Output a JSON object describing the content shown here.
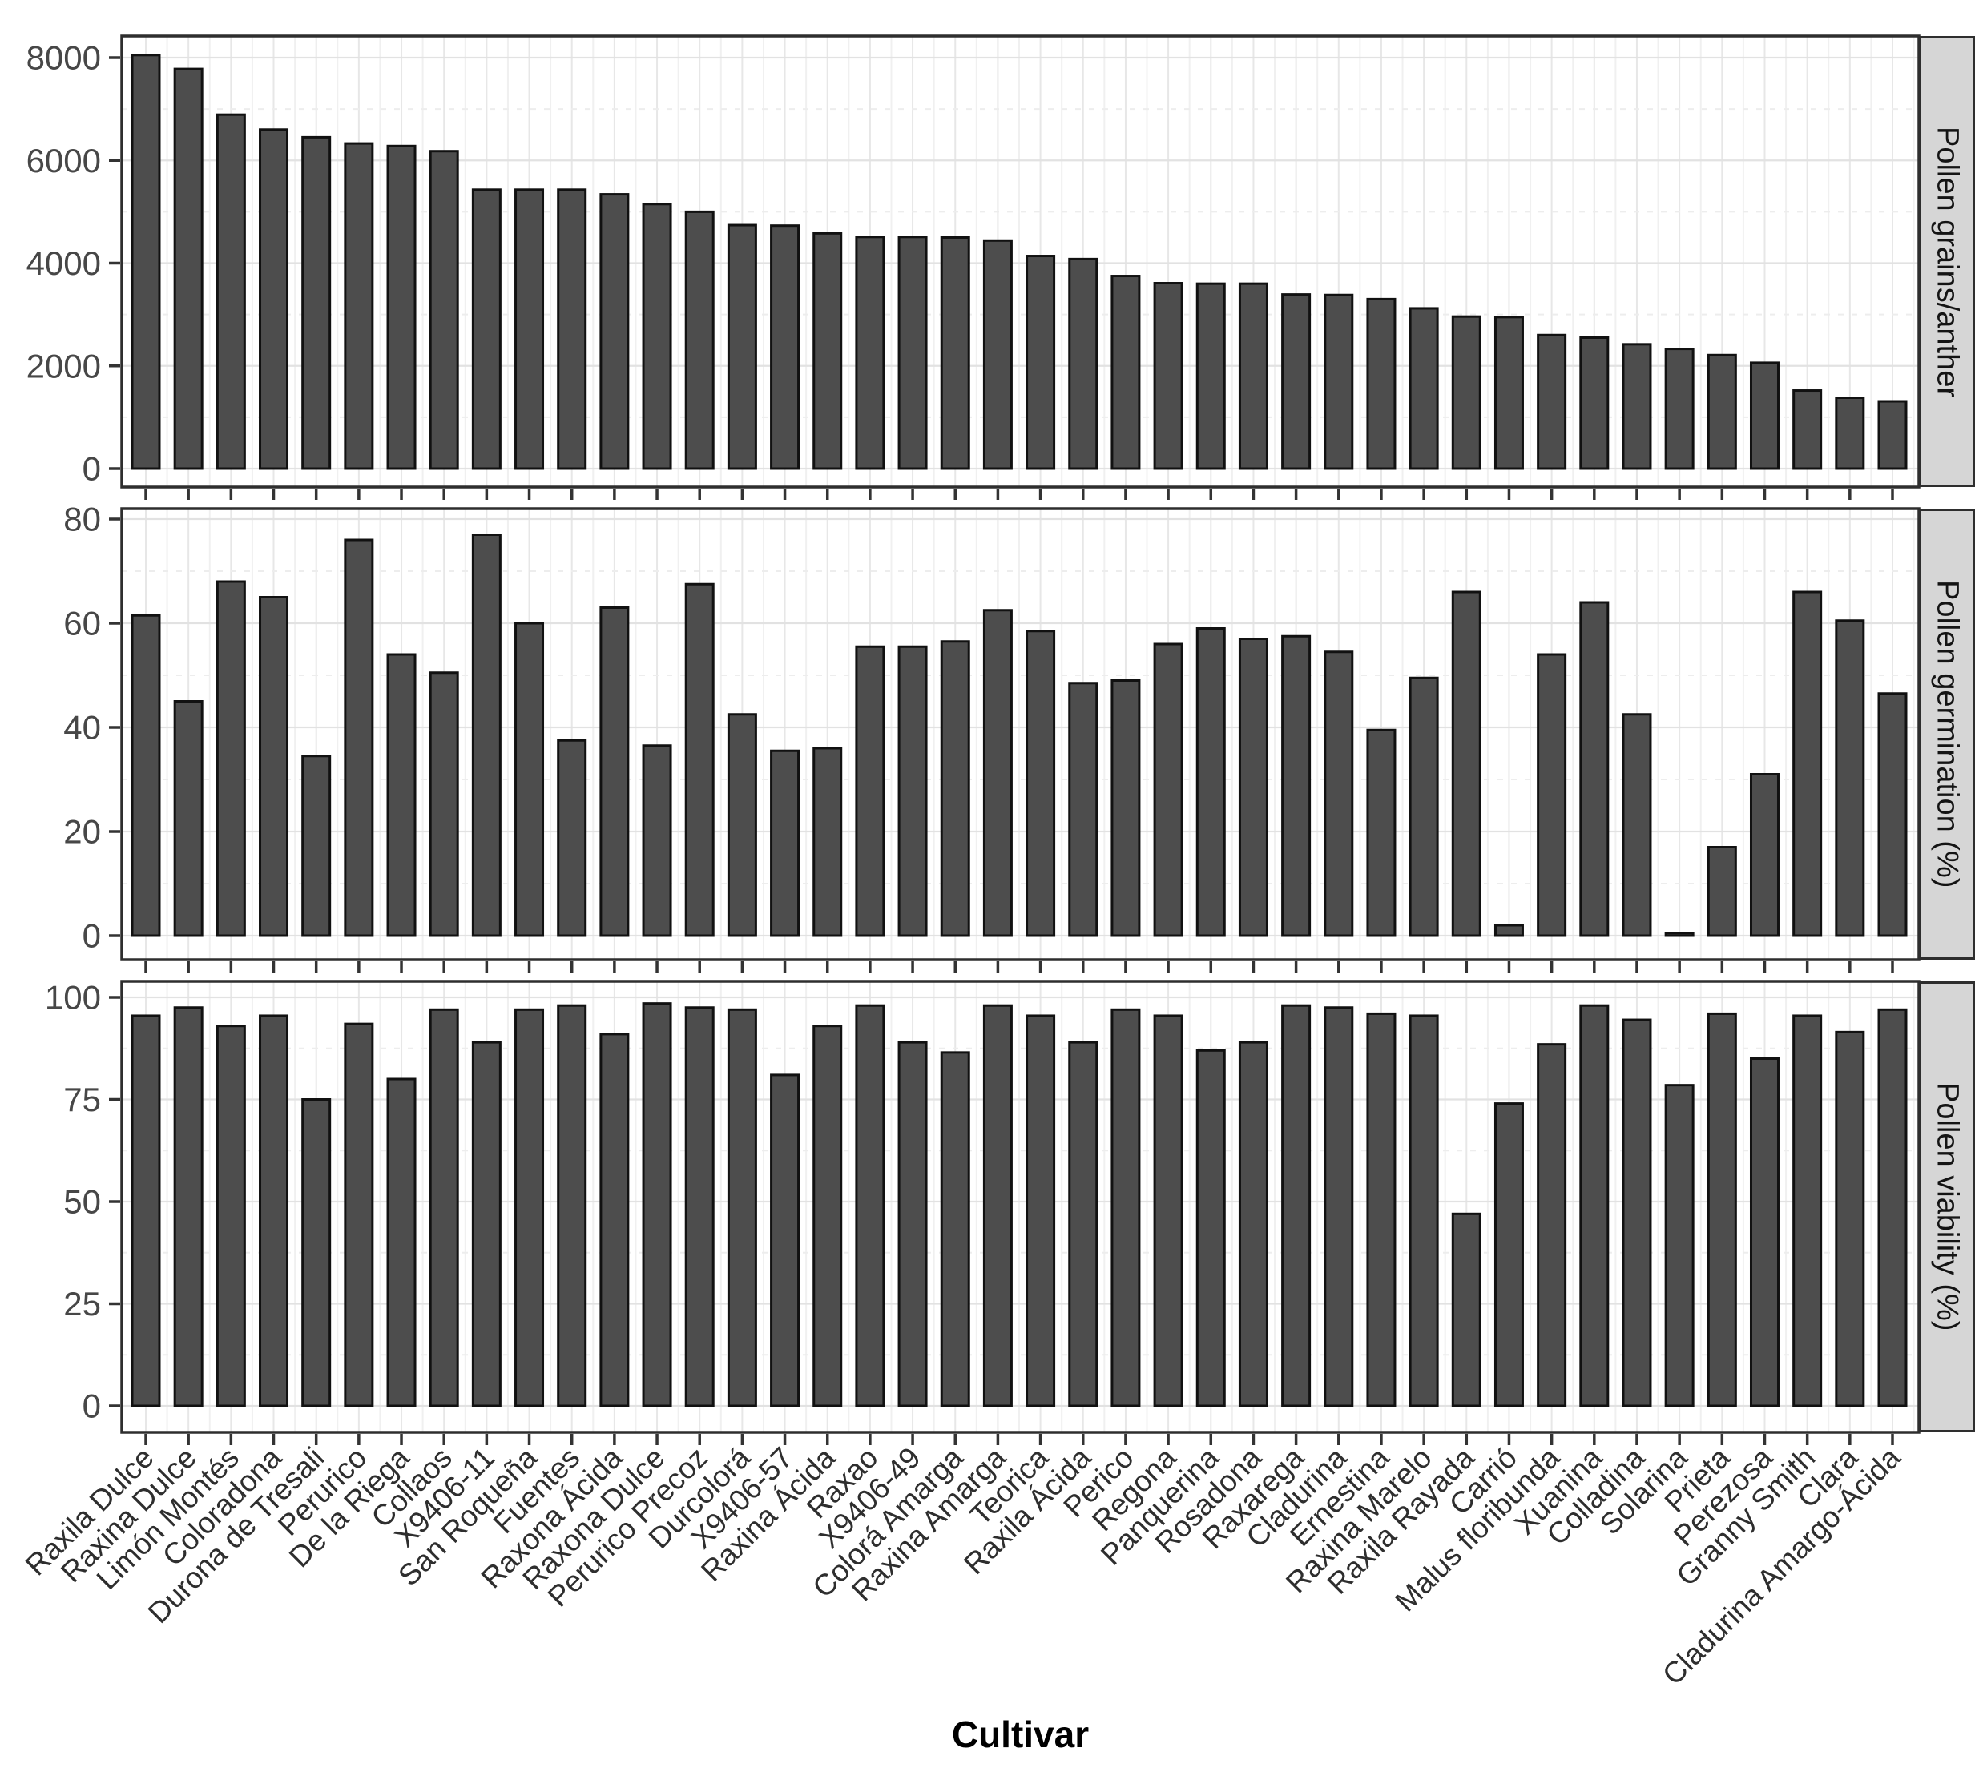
{
  "figure": {
    "x_axis_title": "Cultivar",
    "background": "#ffffff",
    "bar_fill": "#4d4d4d",
    "bar_stroke": "#111111",
    "panel_border": "#2e2e2e",
    "grid_major": "#e2e2e2",
    "grid_minor": "#ededed",
    "strip_bg": "#d6d6d6",
    "tick_color": "#333333",
    "tick_label_color": "#474747"
  },
  "chart_data": [
    {
      "type": "bar",
      "title": "Pollen grains/anther",
      "ylabel": "Pollen grains/anther",
      "xlabel": "",
      "legend": "none",
      "grid": true,
      "ylim": [
        0,
        8400
      ],
      "yticks": [
        0,
        2000,
        4000,
        6000,
        8000
      ],
      "yminor": [
        1000,
        3000,
        5000,
        7000
      ],
      "categories": [
        "Raxila Dulce",
        "Raxina Dulce",
        "Limón Montés",
        "Coloradona",
        "Durona de Tresali",
        "Perurico",
        "De la Riega",
        "Collaos",
        "X9406-11",
        "San Roqueña",
        "Fuentes",
        "Raxona Ácida",
        "Raxona Dulce",
        "Perurico Precoz",
        "Durcolorá",
        "X9406-57",
        "Raxina Ácida",
        "Raxao",
        "X9406-49",
        "Colorá Amarga",
        "Raxina Amarga",
        "Teorica",
        "Raxila Ácida",
        "Perico",
        "Regona",
        "Panquerina",
        "Rosadona",
        "Raxarega",
        "Cladurina",
        "Ernestina",
        "Raxina Marelo",
        "Raxila Rayada",
        "Carrió",
        "Malus floribunda",
        "Xuanina",
        "Colladina",
        "Solarina",
        "Prieta",
        "Perezosa",
        "Granny Smith",
        "Clara",
        "Cladurina Amargo-Ácida"
      ],
      "values": [
        8050,
        7780,
        6890,
        6600,
        6450,
        6330,
        6280,
        6180,
        5430,
        5430,
        5430,
        5340,
        5150,
        5000,
        4740,
        4730,
        4580,
        4510,
        4510,
        4500,
        4440,
        4140,
        4080,
        3750,
        3610,
        3600,
        3600,
        3390,
        3380,
        3300,
        3120,
        2960,
        2950,
        2600,
        2550,
        2420,
        2330,
        2210,
        2060,
        1520,
        1380,
        1310
      ]
    },
    {
      "type": "bar",
      "title": "Pollen germination (%)",
      "ylabel": "Pollen germination (%)",
      "xlabel": "",
      "legend": "none",
      "grid": true,
      "ylim": [
        0,
        82
      ],
      "yticks": [
        0,
        20,
        40,
        60,
        80
      ],
      "yminor": [
        10,
        30,
        50,
        70
      ],
      "categories": [
        "Raxila Dulce",
        "Raxina Dulce",
        "Limón Montés",
        "Coloradona",
        "Durona de Tresali",
        "Perurico",
        "De la Riega",
        "Collaos",
        "X9406-11",
        "San Roqueña",
        "Fuentes",
        "Raxona Ácida",
        "Raxona Dulce",
        "Perurico Precoz",
        "Durcolorá",
        "X9406-57",
        "Raxina Ácida",
        "Raxao",
        "X9406-49",
        "Colorá Amarga",
        "Raxina Amarga",
        "Teorica",
        "Raxila Ácida",
        "Perico",
        "Regona",
        "Panquerina",
        "Rosadona",
        "Raxarega",
        "Cladurina",
        "Ernestina",
        "Raxina Marelo",
        "Raxila Rayada",
        "Carrió",
        "Malus floribunda",
        "Xuanina",
        "Colladina",
        "Solarina",
        "Prieta",
        "Perezosa",
        "Granny Smith",
        "Clara",
        "Cladurina Amargo-Ácida"
      ],
      "values": [
        61.5,
        45,
        68,
        65,
        34.5,
        76,
        54,
        50.5,
        77,
        60,
        37.5,
        63,
        36.5,
        67.5,
        42.5,
        35.5,
        36,
        55.5,
        55.5,
        56.5,
        62.5,
        58.5,
        48.5,
        49,
        56,
        59,
        57,
        57.5,
        54.5,
        39.5,
        49.5,
        66,
        2,
        54,
        64,
        42.5,
        0.5,
        17,
        31,
        66,
        60.5,
        46.5
      ]
    },
    {
      "type": "bar",
      "title": "Pollen viability (%)",
      "ylabel": "Pollen viability (%)",
      "xlabel": "Cultivar",
      "legend": "none",
      "grid": true,
      "ylim": [
        0,
        104
      ],
      "yticks": [
        0,
        25,
        50,
        75,
        100
      ],
      "yminor": [
        12.5,
        37.5,
        62.5,
        87.5
      ],
      "categories": [
        "Raxila Dulce",
        "Raxina Dulce",
        "Limón Montés",
        "Coloradona",
        "Durona de Tresali",
        "Perurico",
        "De la Riega",
        "Collaos",
        "X9406-11",
        "San Roqueña",
        "Fuentes",
        "Raxona Ácida",
        "Raxona Dulce",
        "Perurico Precoz",
        "Durcolorá",
        "X9406-57",
        "Raxina Ácida",
        "Raxao",
        "X9406-49",
        "Colorá Amarga",
        "Raxina Amarga",
        "Teorica",
        "Raxila Ácida",
        "Perico",
        "Regona",
        "Panquerina",
        "Rosadona",
        "Raxarega",
        "Cladurina",
        "Ernestina",
        "Raxina Marelo",
        "Raxila Rayada",
        "Carrió",
        "Malus floribunda",
        "Xuanina",
        "Colladina",
        "Solarina",
        "Prieta",
        "Perezosa",
        "Granny Smith",
        "Clara",
        "Cladurina Amargo-Ácida"
      ],
      "values": [
        95.5,
        97.5,
        93,
        95.5,
        75,
        93.5,
        80,
        97,
        89,
        97,
        98,
        91,
        98.5,
        97.5,
        97,
        81,
        93,
        98,
        89,
        86.5,
        98,
        95.5,
        89,
        97,
        95.5,
        87,
        89,
        98,
        97.5,
        96,
        95.5,
        47,
        74,
        88.5,
        98,
        94.5,
        78.5,
        96,
        85,
        95.5,
        91.5,
        97
      ]
    }
  ]
}
